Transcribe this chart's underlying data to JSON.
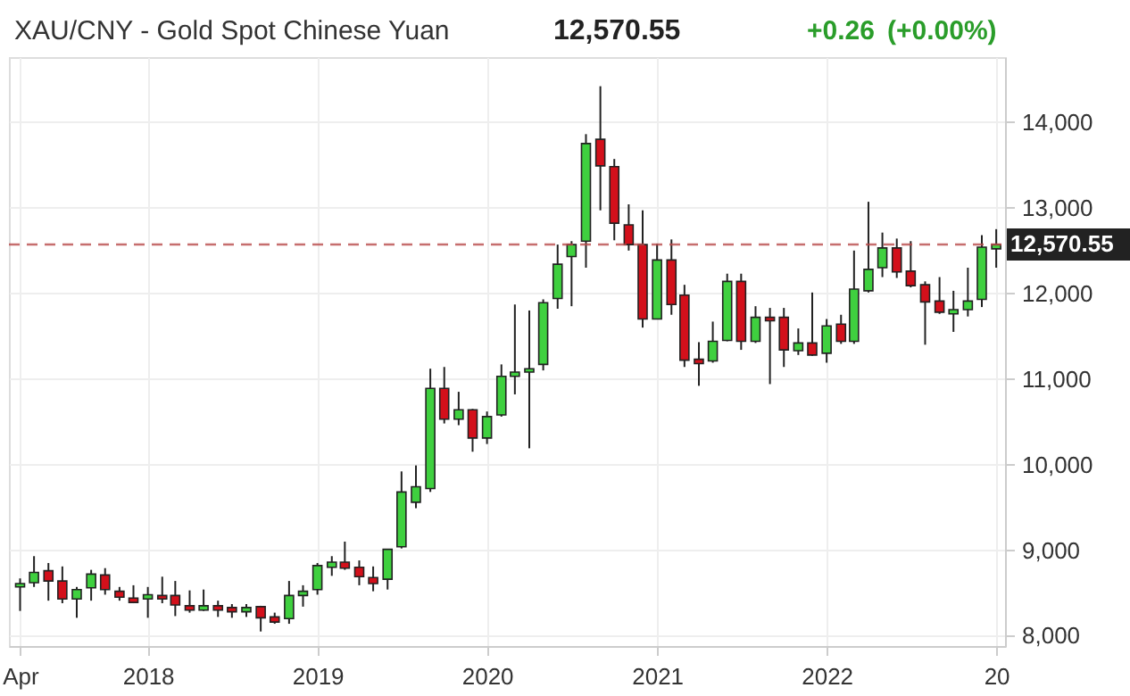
{
  "chart_data": {
    "type": "candlestick",
    "title": "XAU/CNY - Gold Spot Chinese Yuan",
    "annotations": [
      "12,570.55",
      "+0.26",
      "(+0.00%)"
    ],
    "x": [
      "2017-04",
      "2017-05",
      "2017-06",
      "2017-07",
      "2017-08",
      "2017-09",
      "2017-10",
      "2017-11",
      "2017-12",
      "2018-01",
      "2018-02",
      "2018-03",
      "2018-04",
      "2018-05",
      "2018-06",
      "2018-07",
      "2018-08",
      "2018-09",
      "2018-10",
      "2018-11",
      "2018-12",
      "2019-01",
      "2019-02",
      "2019-03",
      "2019-04",
      "2019-05",
      "2019-06",
      "2019-07",
      "2019-08",
      "2019-09",
      "2019-10",
      "2019-11",
      "2019-12",
      "2020-01",
      "2020-02",
      "2020-03",
      "2020-04",
      "2020-05",
      "2020-06",
      "2020-07",
      "2020-08",
      "2020-09",
      "2020-10",
      "2020-11",
      "2020-12",
      "2021-01",
      "2021-02",
      "2021-03",
      "2021-04",
      "2021-05",
      "2021-06",
      "2021-07",
      "2021-08",
      "2021-09",
      "2021-10",
      "2021-11",
      "2021-12",
      "2022-01",
      "2022-02",
      "2022-03",
      "2022-04",
      "2022-05",
      "2022-06",
      "2022-07",
      "2022-08",
      "2022-09",
      "2022-10",
      "2022-11",
      "2022-12",
      "2023-01"
    ],
    "ohlc": [
      [
        8570,
        8670,
        8290,
        8610
      ],
      [
        8620,
        8930,
        8570,
        8740
      ],
      [
        8760,
        8850,
        8410,
        8640
      ],
      [
        8640,
        8810,
        8380,
        8430
      ],
      [
        8430,
        8570,
        8210,
        8540
      ],
      [
        8560,
        8770,
        8410,
        8720
      ],
      [
        8710,
        8790,
        8480,
        8540
      ],
      [
        8520,
        8570,
        8410,
        8450
      ],
      [
        8440,
        8590,
        8380,
        8390
      ],
      [
        8430,
        8570,
        8210,
        8480
      ],
      [
        8470,
        8690,
        8380,
        8430
      ],
      [
        8470,
        8640,
        8230,
        8360
      ],
      [
        8350,
        8530,
        8270,
        8300
      ],
      [
        8300,
        8540,
        8290,
        8350
      ],
      [
        8350,
        8410,
        8220,
        8300
      ],
      [
        8330,
        8370,
        8210,
        8280
      ],
      [
        8280,
        8370,
        8220,
        8330
      ],
      [
        8340,
        8350,
        8050,
        8210
      ],
      [
        8220,
        8270,
        8140,
        8160
      ],
      [
        8200,
        8640,
        8140,
        8470
      ],
      [
        8470,
        8590,
        8340,
        8520
      ],
      [
        8540,
        8850,
        8480,
        8820
      ],
      [
        8800,
        8930,
        8700,
        8860
      ],
      [
        8860,
        9100,
        8770,
        8790
      ],
      [
        8800,
        8880,
        8590,
        8690
      ],
      [
        8680,
        8810,
        8520,
        8610
      ],
      [
        8660,
        9010,
        8540,
        9010
      ],
      [
        9040,
        9920,
        9020,
        9680
      ],
      [
        9560,
        9990,
        9490,
        9740
      ],
      [
        9720,
        11120,
        9680,
        10890
      ],
      [
        10890,
        11140,
        10480,
        10530
      ],
      [
        10530,
        10850,
        10460,
        10640
      ],
      [
        10640,
        10650,
        10150,
        10310
      ],
      [
        10310,
        10620,
        10240,
        10560
      ],
      [
        10580,
        11170,
        10560,
        11030
      ],
      [
        11030,
        11870,
        10820,
        11080
      ],
      [
        11080,
        11800,
        10190,
        11120
      ],
      [
        11170,
        11930,
        11100,
        11890
      ],
      [
        11940,
        12570,
        11820,
        12340
      ],
      [
        12430,
        12610,
        11850,
        12570
      ],
      [
        12610,
        13860,
        12300,
        13750
      ],
      [
        13800,
        14420,
        12970,
        13490
      ],
      [
        13480,
        13570,
        12620,
        12820
      ],
      [
        12800,
        13040,
        12500,
        12570
      ],
      [
        12570,
        12970,
        11600,
        11700
      ],
      [
        11700,
        12580,
        11700,
        12390
      ],
      [
        12390,
        12630,
        11750,
        11870
      ],
      [
        11980,
        12100,
        11140,
        11220
      ],
      [
        11230,
        11430,
        10920,
        11180
      ],
      [
        11210,
        11670,
        11190,
        11440
      ],
      [
        11450,
        12230,
        11440,
        12140
      ],
      [
        12140,
        12230,
        11340,
        11440
      ],
      [
        11440,
        11850,
        11420,
        11720
      ],
      [
        11720,
        11830,
        10940,
        11680
      ],
      [
        11720,
        11830,
        11140,
        11340
      ],
      [
        11330,
        11590,
        11280,
        11420
      ],
      [
        11420,
        12010,
        11270,
        11280
      ],
      [
        11300,
        11700,
        11190,
        11620
      ],
      [
        11640,
        11750,
        11410,
        11440
      ],
      [
        11440,
        12500,
        11410,
        12050
      ],
      [
        12030,
        13070,
        12010,
        12280
      ],
      [
        12300,
        12710,
        12190,
        12530
      ],
      [
        12530,
        12640,
        12180,
        12250
      ],
      [
        12260,
        12610,
        12070,
        12090
      ],
      [
        12100,
        12140,
        11400,
        11900
      ],
      [
        11910,
        12190,
        11760,
        11780
      ],
      [
        11760,
        12030,
        11550,
        11810
      ],
      [
        11810,
        12300,
        11730,
        11910
      ],
      [
        11930,
        12680,
        11840,
        12540
      ],
      [
        12520,
        12750,
        12300,
        12570.55
      ]
    ],
    "colors": [
      "#3fd03f",
      "#3fd03f",
      "#d3101b",
      "#d3101b",
      "#3fd03f",
      "#3fd03f",
      "#d3101b",
      "#d3101b",
      "#d3101b",
      "#3fd03f",
      "#d3101b",
      "#d3101b",
      "#d3101b",
      "#3fd03f",
      "#d3101b",
      "#d3101b",
      "#3fd03f",
      "#d3101b",
      "#d3101b",
      "#3fd03f",
      "#3fd03f",
      "#3fd03f",
      "#3fd03f",
      "#d3101b",
      "#d3101b",
      "#d3101b",
      "#3fd03f",
      "#3fd03f",
      "#3fd03f",
      "#3fd03f",
      "#d3101b",
      "#3fd03f",
      "#d3101b",
      "#3fd03f",
      "#3fd03f",
      "#3fd03f",
      "#3fd03f",
      "#3fd03f",
      "#3fd03f",
      "#3fd03f",
      "#3fd03f",
      "#d3101b",
      "#d3101b",
      "#d3101b",
      "#d3101b",
      "#3fd03f",
      "#d3101b",
      "#d3101b",
      "#d3101b",
      "#3fd03f",
      "#3fd03f",
      "#d3101b",
      "#3fd03f",
      "#d3101b",
      "#d3101b",
      "#3fd03f",
      "#d3101b",
      "#3fd03f",
      "#d3101b",
      "#3fd03f",
      "#3fd03f",
      "#3fd03f",
      "#d3101b",
      "#d3101b",
      "#d3101b",
      "#d3101b",
      "#3fd03f",
      "#3fd03f",
      "#3fd03f",
      "#3fd03f"
    ],
    "xlim": [
      "2017-03-08",
      "2023-01-20"
    ],
    "xticks": [
      {
        "value": "2017-04",
        "label": "Apr"
      },
      {
        "value": "2018-01",
        "label": "2018"
      },
      {
        "value": "2019-01",
        "label": "2019"
      },
      {
        "value": "2020-01",
        "label": "2020"
      },
      {
        "value": "2021-01",
        "label": "2021"
      },
      {
        "value": "2022-01",
        "label": "2022"
      },
      {
        "value": "2023-01",
        "label": "20"
      }
    ],
    "ylim": [
      7880,
      14760
    ],
    "yticks": [
      {
        "value": 8000,
        "label": "8,000"
      },
      {
        "value": 9000,
        "label": "9,000"
      },
      {
        "value": 10000,
        "label": "10,000"
      },
      {
        "value": 11000,
        "label": "11,000"
      },
      {
        "value": 12000,
        "label": "12,000"
      },
      {
        "value": 13000,
        "label": "13,000"
      },
      {
        "value": 14000,
        "label": "14,000"
      }
    ],
    "ref_lines": [
      {
        "axis": "y",
        "value": 12570.55,
        "label": "12,570.55",
        "color": "#b84a4a",
        "line_style": "dashed"
      }
    ],
    "grid": true
  }
}
